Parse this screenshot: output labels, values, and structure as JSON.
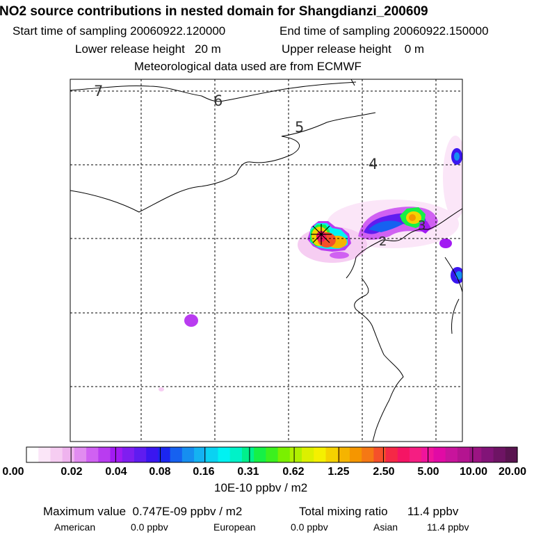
{
  "header": {
    "title": "NO2 source contributions in nested domain for Shangdianzi_200609",
    "start_label": "Start time of sampling",
    "start_value": "20060922.120000",
    "end_label": "End time of sampling",
    "end_value": "20060922.150000",
    "lower_label": "Lower release height",
    "lower_value": "20 m",
    "upper_label": "Upper release height",
    "upper_value": "0 m",
    "met_text": "Meteorological data used are from ECMWF"
  },
  "map": {
    "contour_labels": [
      "7",
      "6",
      "5",
      "4",
      "3",
      "2"
    ]
  },
  "colorbar": {
    "colors": [
      "#ffffff",
      "#fbe6f8",
      "#f6cdf2",
      "#efb3ee",
      "#e18cf0",
      "#d061f2",
      "#b93cf0",
      "#a21bf2",
      "#7f1ef0",
      "#5f1cf0",
      "#3a16f0",
      "#1b26f0",
      "#1661f0",
      "#168ef0",
      "#14b2f2",
      "#0ad2f2",
      "#00f2f2",
      "#00f2c8",
      "#00f08c",
      "#16f046",
      "#3cf01e",
      "#7af000",
      "#b0f000",
      "#dcf000",
      "#f5f000",
      "#f5d200",
      "#f5b400",
      "#f59600",
      "#f57814",
      "#f5502a",
      "#f52846",
      "#f51464",
      "#f51e82",
      "#f0149c",
      "#e10aa5",
      "#c8149c",
      "#b41490",
      "#9b1482",
      "#821478",
      "#6e1464",
      "#5a1450"
    ],
    "tick_labels": [
      "0.00",
      "0.02",
      "0.04",
      "0.08",
      "0.16",
      "0.31",
      "0.62",
      "1.25",
      "2.50",
      "5.00",
      "10.00",
      "20.00"
    ],
    "unit": "10E-10 ppbv / m2"
  },
  "summary": {
    "max_label": "Maximum value",
    "max_value": "0.747E-09 ppbv / m2",
    "total_label": "Total mixing ratio",
    "total_value": "11.4 ppbv",
    "american_label": "American",
    "american_value": "0.0 ppbv",
    "european_label": "European",
    "european_value": "0.0 ppbv",
    "asian_label": "Asian",
    "asian_value": "11.4 ppbv"
  }
}
